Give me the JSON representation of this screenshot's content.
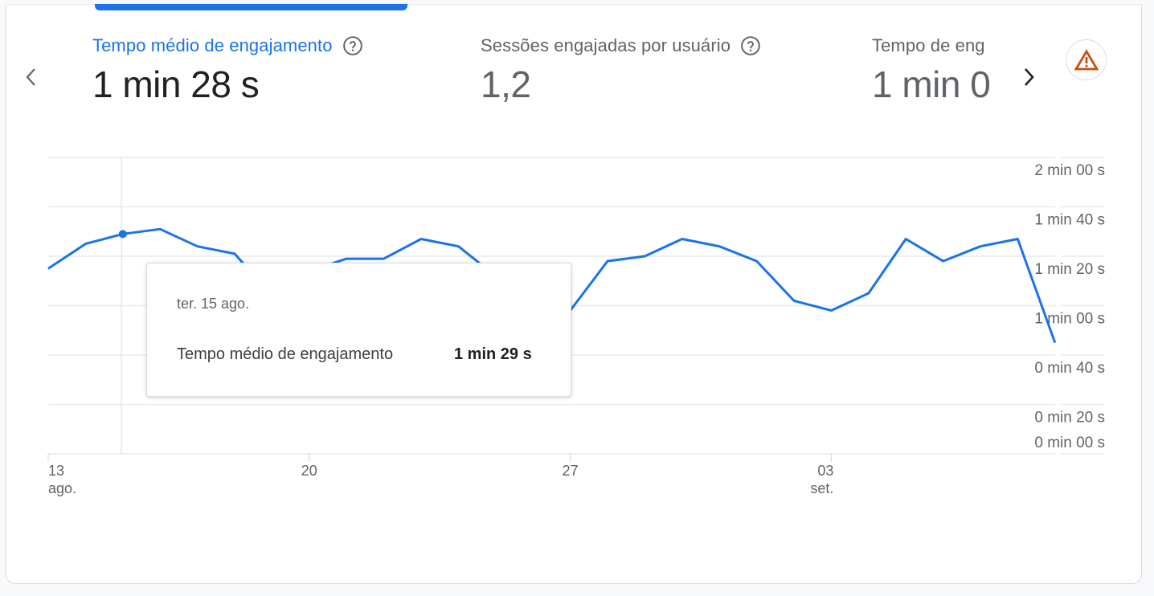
{
  "colors": {
    "accent": "#1a73e8",
    "line": "#1a73e8",
    "warning": "#c5500f",
    "gridline": "#e8eaed",
    "text_secondary": "#5f6368",
    "text_primary": "#202124"
  },
  "metrics": [
    {
      "title": "Tempo médio de engajamento",
      "value": "1 min 28 s",
      "active": true,
      "help_icon": "help-circle-icon"
    },
    {
      "title": "Sessões engajadas por usuário",
      "value": "1,2",
      "active": false,
      "help_icon": "help-circle-icon"
    },
    {
      "title": "Tempo de engajamento por sessão",
      "value": "1 min 0",
      "active": false,
      "truncated_title": "Tempo de eng"
    }
  ],
  "nav": {
    "prev_icon": "chevron-left-icon",
    "next_icon": "chevron-right-icon"
  },
  "warning_button": {
    "icon": "warning-icon"
  },
  "tooltip": {
    "date": "ter. 15 ago.",
    "metric_label": "Tempo médio de engajamento",
    "metric_value": "1 min 29 s"
  },
  "chart_data": {
    "type": "line",
    "title": "Tempo médio de engajamento",
    "xlabel": "",
    "ylabel": "",
    "y_axis_position": "right",
    "grid": true,
    "ylim": [
      0,
      120
    ],
    "y_ticks": [
      {
        "value": 120,
        "label": "2 min 00 s"
      },
      {
        "value": 100,
        "label": "1 min 40 s"
      },
      {
        "value": 80,
        "label": "1 min 20 s"
      },
      {
        "value": 60,
        "label": "1 min 00 s"
      },
      {
        "value": 40,
        "label": "0 min 40 s"
      },
      {
        "value": 20,
        "label": "0 min 20 s"
      },
      {
        "value": 0,
        "label": "0 min 00 s"
      }
    ],
    "x_ticks": [
      {
        "index": 0,
        "label": "13",
        "sublabel": "ago."
      },
      {
        "index": 7,
        "label": "20",
        "sublabel": ""
      },
      {
        "index": 14,
        "label": "27",
        "sublabel": ""
      },
      {
        "index": 21,
        "label": "03",
        "sublabel": "set."
      }
    ],
    "x": [
      "13 ago.",
      "14 ago.",
      "15 ago.",
      "16 ago.",
      "17 ago.",
      "18 ago.",
      "19 ago.",
      "20 ago.",
      "21 ago.",
      "22 ago.",
      "23 ago.",
      "24 ago.",
      "25 ago.",
      "26 ago.",
      "27 ago.",
      "28 ago.",
      "29 ago.",
      "30 ago.",
      "31 ago.",
      "01 set.",
      "02 set.",
      "03 set.",
      "04 set.",
      "05 set.",
      "06 set.",
      "07 set.",
      "08 set.",
      "09 set."
    ],
    "series": [
      {
        "name": "Tempo médio de engajamento",
        "unit": "s",
        "values": [
          75,
          85,
          89,
          91,
          84,
          81,
          64,
          74,
          79,
          79,
          87,
          84,
          72,
          59,
          58,
          78,
          80,
          87,
          84,
          78,
          62,
          58,
          65,
          87,
          78,
          84,
          87,
          45
        ]
      }
    ],
    "highlighted_point": {
      "index": 2,
      "label": "ter. 15 ago.",
      "value": "1 min 29 s"
    }
  }
}
